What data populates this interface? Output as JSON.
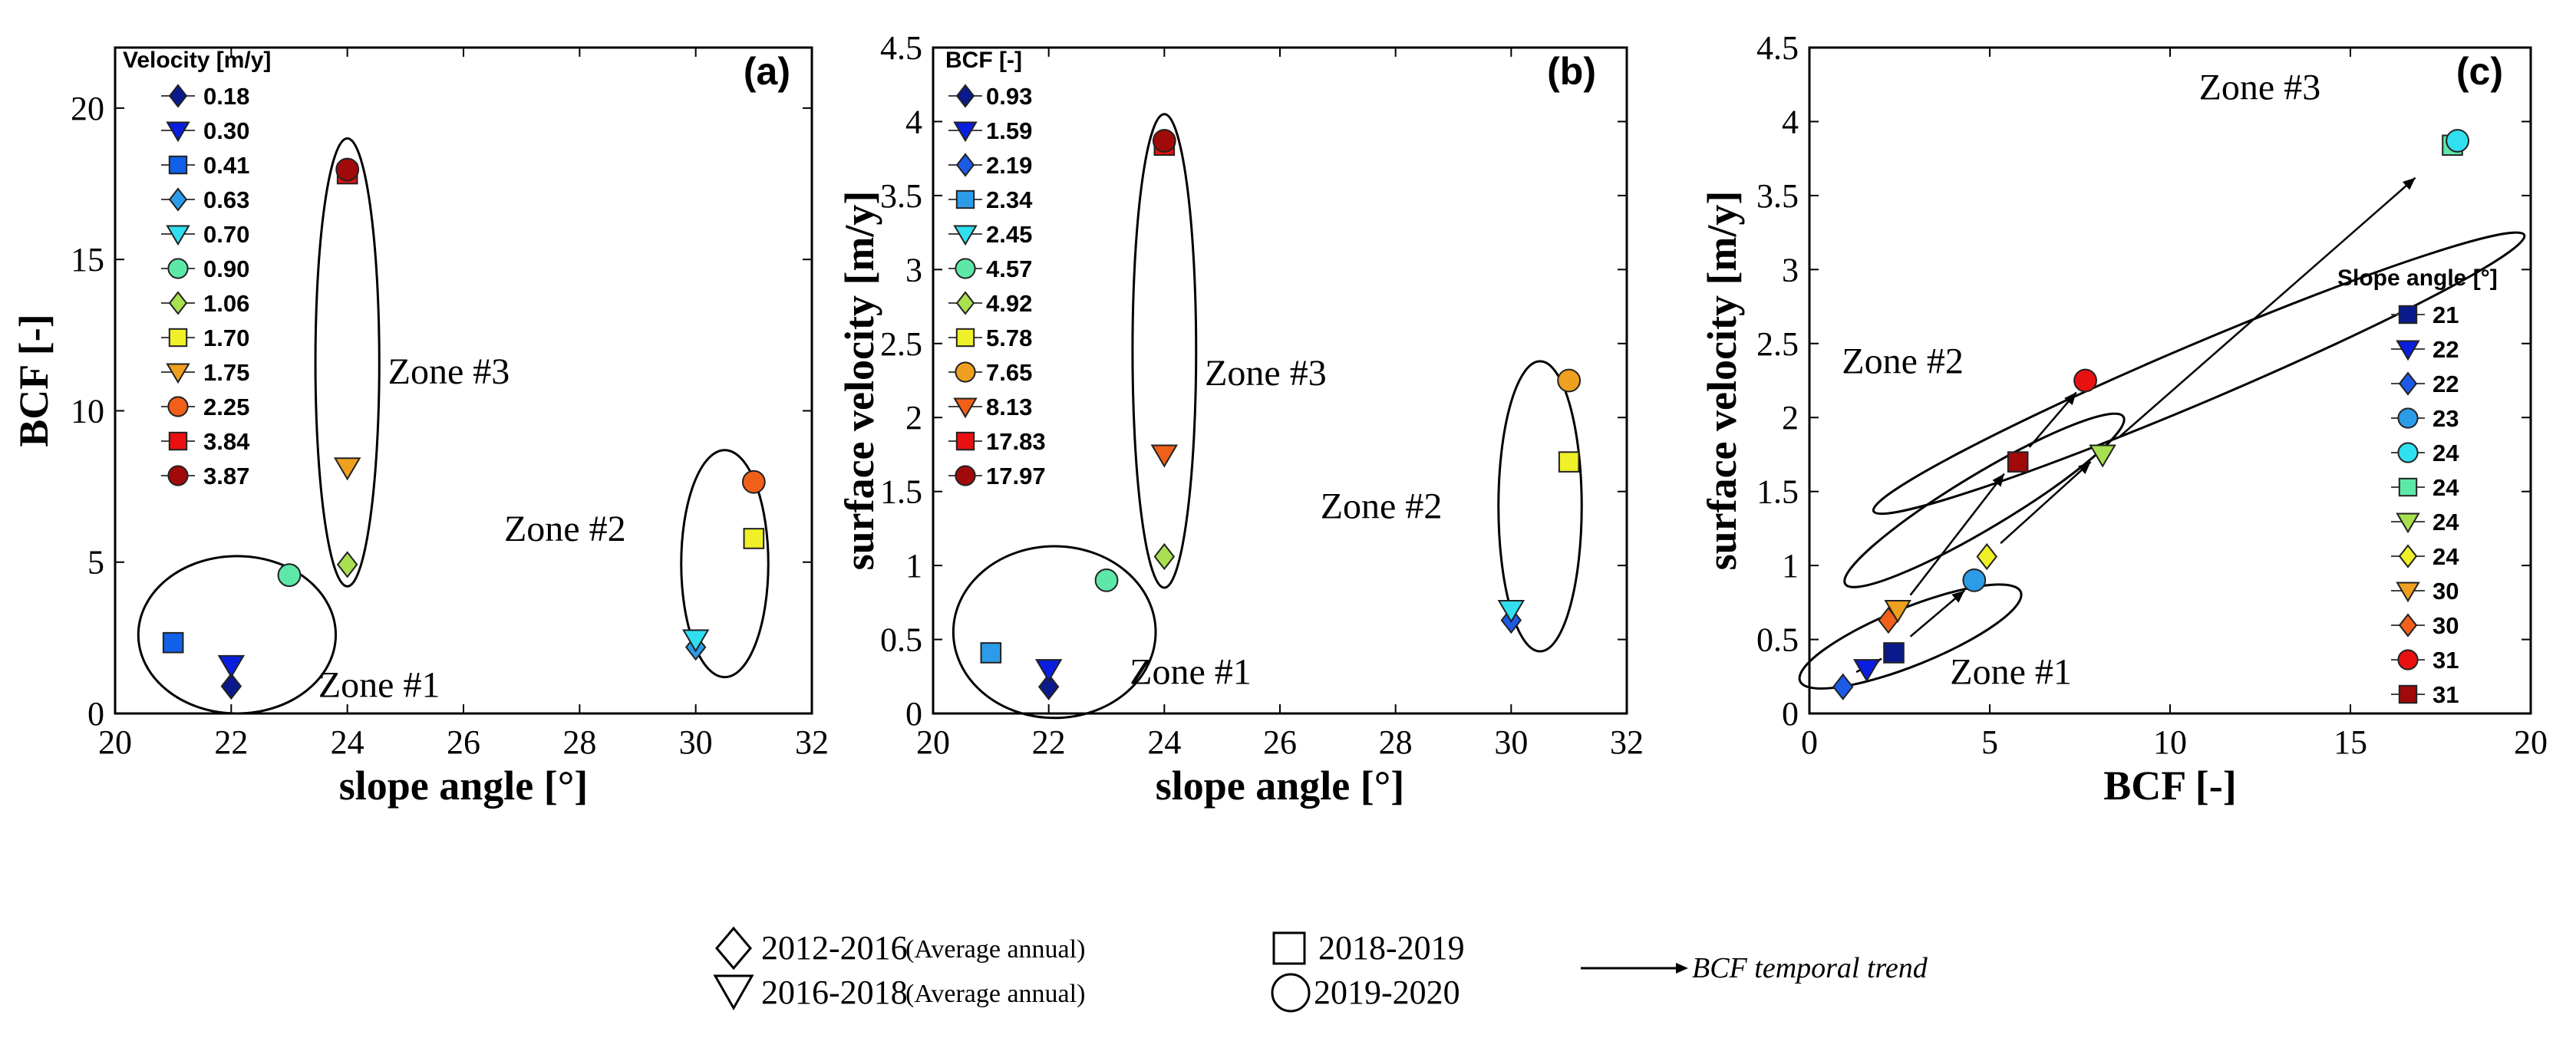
{
  "bottom_legend": {
    "periods": [
      {
        "shape": "diamond",
        "label": "2012-2016",
        "note": "(Average annual)"
      },
      {
        "shape": "tri",
        "label": "2016-2018",
        "note": "(Average annual)"
      },
      {
        "shape": "square",
        "label": "2018-2019",
        "note": ""
      },
      {
        "shape": "circle",
        "label": "2019-2020",
        "note": ""
      }
    ],
    "trend_label": "BCF temporal trend"
  },
  "chart_data": [
    {
      "type": "scatter",
      "panel_label": "(a)",
      "xlabel": "slope angle [°]",
      "ylabel": "BCF [-]",
      "xlim": [
        20,
        32
      ],
      "ylim": [
        0,
        22
      ],
      "xticks": [
        20,
        22,
        24,
        26,
        28,
        30,
        32
      ],
      "yticks": [
        0,
        5,
        10,
        15,
        20
      ],
      "legend_title": "Velocity [m/y]",
      "legend": [
        {
          "label": "0.18",
          "shape": "diamond",
          "color": "#0a1a8c"
        },
        {
          "label": "0.30",
          "shape": "tri",
          "color": "#0a1ee0"
        },
        {
          "label": "0.41",
          "shape": "square",
          "color": "#1060e8"
        },
        {
          "label": "0.63",
          "shape": "diamond",
          "color": "#2d9ce8"
        },
        {
          "label": "0.70",
          "shape": "tri",
          "color": "#30e0f0"
        },
        {
          "label": "0.90",
          "shape": "circle",
          "color": "#5ee8a8"
        },
        {
          "label": "1.06",
          "shape": "diamond",
          "color": "#a8e050"
        },
        {
          "label": "1.70",
          "shape": "square",
          "color": "#f0f028"
        },
        {
          "label": "1.75",
          "shape": "tri",
          "color": "#f0a020"
        },
        {
          "label": "2.25",
          "shape": "circle",
          "color": "#f06018"
        },
        {
          "label": "3.84",
          "shape": "square",
          "color": "#e81010"
        },
        {
          "label": "3.87",
          "shape": "circle",
          "color": "#a00a0a"
        }
      ],
      "points": [
        {
          "x": 22,
          "y": 0.9,
          "shape": "diamond",
          "color": "#0a1a8c"
        },
        {
          "x": 22,
          "y": 1.6,
          "shape": "tri",
          "color": "#0a1ee0"
        },
        {
          "x": 21,
          "y": 2.34,
          "shape": "square",
          "color": "#1060e8"
        },
        {
          "x": 30,
          "y": 2.19,
          "shape": "diamond",
          "color": "#2d9ce8"
        },
        {
          "x": 30,
          "y": 2.45,
          "shape": "tri",
          "color": "#30e0f0"
        },
        {
          "x": 23,
          "y": 4.57,
          "shape": "circle",
          "color": "#5ee8a8"
        },
        {
          "x": 24,
          "y": 4.92,
          "shape": "diamond",
          "color": "#a8e050"
        },
        {
          "x": 31,
          "y": 5.78,
          "shape": "square",
          "color": "#f0f028"
        },
        {
          "x": 24,
          "y": 8.13,
          "shape": "tri",
          "color": "#f0a020"
        },
        {
          "x": 31,
          "y": 7.65,
          "shape": "circle",
          "color": "#f06018"
        },
        {
          "x": 24,
          "y": 17.83,
          "shape": "square",
          "color": "#e81010"
        },
        {
          "x": 24,
          "y": 17.97,
          "shape": "circle",
          "color": "#a00a0a"
        }
      ],
      "zones": [
        {
          "label": "Zone #1",
          "cx": 22.1,
          "cy": 2.6,
          "rx": 1.7,
          "ry": 2.6,
          "angle": 0,
          "lx": 23.5,
          "ly": 0.55
        },
        {
          "label": "Zone #2",
          "cx": 30.5,
          "cy": 4.95,
          "rx": 0.75,
          "ry": 3.75,
          "angle": 0,
          "lx": 26.7,
          "ly": 5.7
        },
        {
          "label": "Zone #3",
          "cx": 24,
          "cy": 11.6,
          "rx": 0.55,
          "ry": 7.4,
          "angle": 0,
          "lx": 24.7,
          "ly": 10.9
        }
      ]
    },
    {
      "type": "scatter",
      "panel_label": "(b)",
      "xlabel": "slope angle [°]",
      "ylabel": "surface velocity [m/y]",
      "xlim": [
        20,
        32
      ],
      "ylim": [
        0,
        4.5
      ],
      "xticks": [
        20,
        22,
        24,
        26,
        28,
        30,
        32
      ],
      "yticks": [
        0,
        0.5,
        1,
        1.5,
        2,
        2.5,
        3,
        3.5,
        4,
        4.5
      ],
      "legend_title": "BCF [-]",
      "legend": [
        {
          "label": "0.93",
          "shape": "diamond",
          "color": "#0a1a8c"
        },
        {
          "label": "1.59",
          "shape": "tri",
          "color": "#0a1ee0"
        },
        {
          "label": "2.19",
          "shape": "diamond",
          "color": "#1e5ae8"
        },
        {
          "label": "2.34",
          "shape": "square",
          "color": "#2d9ce8"
        },
        {
          "label": "2.45",
          "shape": "tri",
          "color": "#30e0f0"
        },
        {
          "label": "4.57",
          "shape": "circle",
          "color": "#5ee8a8"
        },
        {
          "label": "4.92",
          "shape": "diamond",
          "color": "#a8e050"
        },
        {
          "label": "5.78",
          "shape": "square",
          "color": "#f0f028"
        },
        {
          "label": "7.65",
          "shape": "circle",
          "color": "#f0a020"
        },
        {
          "label": "8.13",
          "shape": "tri",
          "color": "#f06018"
        },
        {
          "label": "17.83",
          "shape": "square",
          "color": "#e81010"
        },
        {
          "label": "17.97",
          "shape": "circle",
          "color": "#a00a0a"
        }
      ],
      "points": [
        {
          "x": 22,
          "y": 0.18,
          "shape": "diamond",
          "color": "#0a1a8c"
        },
        {
          "x": 22,
          "y": 0.3,
          "shape": "tri",
          "color": "#0a1ee0"
        },
        {
          "x": 30,
          "y": 0.63,
          "shape": "diamond",
          "color": "#1e5ae8"
        },
        {
          "x": 21,
          "y": 0.41,
          "shape": "square",
          "color": "#2d9ce8"
        },
        {
          "x": 30,
          "y": 0.7,
          "shape": "tri",
          "color": "#30e0f0"
        },
        {
          "x": 23,
          "y": 0.9,
          "shape": "circle",
          "color": "#5ee8a8"
        },
        {
          "x": 24,
          "y": 1.06,
          "shape": "diamond",
          "color": "#a8e050"
        },
        {
          "x": 31,
          "y": 1.7,
          "shape": "square",
          "color": "#f0f028"
        },
        {
          "x": 31,
          "y": 2.25,
          "shape": "circle",
          "color": "#f0a020"
        },
        {
          "x": 24,
          "y": 1.75,
          "shape": "tri",
          "color": "#f06018"
        },
        {
          "x": 24,
          "y": 3.84,
          "shape": "square",
          "color": "#e81010"
        },
        {
          "x": 24,
          "y": 3.87,
          "shape": "circle",
          "color": "#a00a0a"
        }
      ],
      "zones": [
        {
          "label": "Zone #1",
          "cx": 22.1,
          "cy": 0.55,
          "rx": 1.75,
          "ry": 0.58,
          "angle": 0,
          "lx": 23.4,
          "ly": 0.2
        },
        {
          "label": "Zone #2",
          "cx": 30.5,
          "cy": 1.4,
          "rx": 0.72,
          "ry": 0.98,
          "angle": 0,
          "lx": 26.7,
          "ly": 1.32
        },
        {
          "label": "Zone #3",
          "cx": 24,
          "cy": 2.45,
          "rx": 0.55,
          "ry": 1.6,
          "angle": 0,
          "lx": 24.7,
          "ly": 2.22
        }
      ]
    },
    {
      "type": "scatter",
      "panel_label": "(c)",
      "xlabel": "BCF [-]",
      "ylabel": "surface velocity [m/y]",
      "xlim": [
        0,
        20
      ],
      "ylim": [
        0,
        4.5
      ],
      "xticks": [
        0,
        5,
        10,
        15,
        20
      ],
      "yticks": [
        0,
        0.5,
        1,
        1.5,
        2,
        2.5,
        3,
        3.5,
        4,
        4.5
      ],
      "legend_title": "Slope angle [°]",
      "legend": [
        {
          "label": "21",
          "shape": "square",
          "color": "#0a1a8c"
        },
        {
          "label": "22",
          "shape": "tri",
          "color": "#0a1ee0"
        },
        {
          "label": "22",
          "shape": "diamond",
          "color": "#1e5ae8"
        },
        {
          "label": "23",
          "shape": "circle",
          "color": "#2d9ce8"
        },
        {
          "label": "24",
          "shape": "circle",
          "color": "#30e0f0"
        },
        {
          "label": "24",
          "shape": "square",
          "color": "#5ee8a8"
        },
        {
          "label": "24",
          "shape": "tri",
          "color": "#a8e050"
        },
        {
          "label": "24",
          "shape": "diamond",
          "color": "#f0f028"
        },
        {
          "label": "30",
          "shape": "tri",
          "color": "#f0a020"
        },
        {
          "label": "30",
          "shape": "diamond",
          "color": "#f06018"
        },
        {
          "label": "31",
          "shape": "circle",
          "color": "#e81010"
        },
        {
          "label": "31",
          "shape": "square",
          "color": "#a00a0a"
        }
      ],
      "points": [
        {
          "x": 0.93,
          "y": 0.18,
          "shape": "diamond",
          "color": "#1e5ae8"
        },
        {
          "x": 1.59,
          "y": 0.3,
          "shape": "tri",
          "color": "#0a1ee0"
        },
        {
          "x": 2.34,
          "y": 0.41,
          "shape": "square",
          "color": "#0a1a8c"
        },
        {
          "x": 4.57,
          "y": 0.9,
          "shape": "circle",
          "color": "#2d9ce8"
        },
        {
          "x": 4.92,
          "y": 1.06,
          "shape": "diamond",
          "color": "#f0f028"
        },
        {
          "x": 8.13,
          "y": 1.75,
          "shape": "tri",
          "color": "#a8e050"
        },
        {
          "x": 17.83,
          "y": 3.84,
          "shape": "square",
          "color": "#5ee8a8"
        },
        {
          "x": 17.97,
          "y": 3.87,
          "shape": "circle",
          "color": "#30e0f0"
        },
        {
          "x": 2.19,
          "y": 0.63,
          "shape": "diamond",
          "color": "#f06018"
        },
        {
          "x": 2.45,
          "y": 0.7,
          "shape": "tri",
          "color": "#f0a020"
        },
        {
          "x": 5.78,
          "y": 1.7,
          "shape": "square",
          "color": "#a00a0a"
        },
        {
          "x": 7.65,
          "y": 2.25,
          "shape": "circle",
          "color": "#e81010"
        }
      ],
      "arrows": [
        {
          "x1": 1.3,
          "y1": 0.28,
          "x2": 2.0,
          "y2": 0.37
        },
        {
          "x1": 2.8,
          "y1": 0.52,
          "x2": 4.3,
          "y2": 0.83
        },
        {
          "x1": 5.3,
          "y1": 1.15,
          "x2": 7.8,
          "y2": 1.7
        },
        {
          "x1": 8.6,
          "y1": 1.87,
          "x2": 16.8,
          "y2": 3.62
        },
        {
          "x1": 2.8,
          "y1": 0.8,
          "x2": 5.4,
          "y2": 1.62
        },
        {
          "x1": 6.1,
          "y1": 1.8,
          "x2": 7.4,
          "y2": 2.17
        }
      ],
      "zones": [
        {
          "label": "Zone #1",
          "cx": 2.8,
          "cy": 0.52,
          "rx": 3.3,
          "ry": 0.34,
          "angle": 22,
          "lx": 3.9,
          "ly": 0.2
        },
        {
          "label": "Zone #2",
          "cx": 4.85,
          "cy": 1.44,
          "rx": 4.5,
          "ry": 0.28,
          "angle": 31,
          "lx": 0.9,
          "ly": 2.3
        },
        {
          "label": "Zone #3",
          "cx": 10.8,
          "cy": 2.3,
          "rx": 9.8,
          "ry": 0.34,
          "angle": 23,
          "lx": 10.8,
          "ly": 4.15
        }
      ]
    }
  ]
}
